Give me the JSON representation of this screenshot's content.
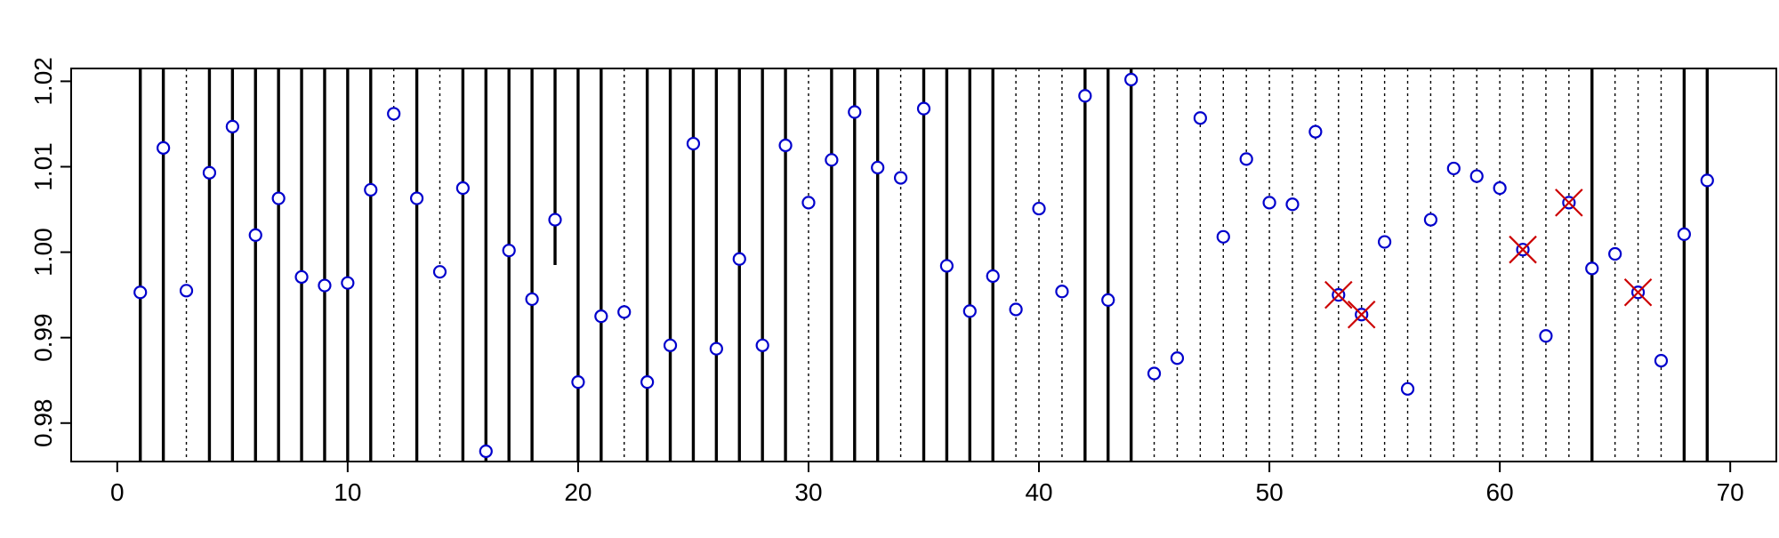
{
  "chart_data": {
    "type": "scatter",
    "title": "",
    "xlabel": "",
    "ylabel": "",
    "xlim": [
      -2,
      72
    ],
    "ylim": [
      0.9755,
      1.0215
    ],
    "grid": false,
    "x_ticks": [
      0,
      10,
      20,
      30,
      40,
      50,
      60,
      70
    ],
    "y_ticks": [
      0.98,
      0.99,
      1.0,
      1.01,
      1.02
    ],
    "x_tick_labels": [
      "0",
      "10",
      "20",
      "30",
      "40",
      "50",
      "60",
      "70"
    ],
    "y_tick_labels": [
      "0.98",
      "0.99",
      "1.00",
      "1.01",
      "1.02"
    ],
    "x": [
      1,
      2,
      3,
      4,
      5,
      6,
      7,
      8,
      9,
      10,
      11,
      12,
      13,
      14,
      15,
      16,
      17,
      18,
      19,
      20,
      21,
      22,
      23,
      24,
      25,
      26,
      27,
      28,
      29,
      30,
      31,
      32,
      33,
      34,
      35,
      36,
      37,
      38,
      39,
      40,
      41,
      42,
      43,
      44,
      45,
      46,
      47,
      48,
      49,
      50,
      51,
      52,
      53,
      54,
      55,
      56,
      57,
      58,
      59,
      60,
      61,
      62,
      63,
      64,
      65,
      66,
      67,
      68,
      69
    ],
    "values": [
      0.9953,
      1.0122,
      0.9955,
      1.0093,
      1.0147,
      1.002,
      1.0063,
      0.9971,
      0.9961,
      0.9964,
      1.0073,
      1.0162,
      1.0063,
      0.9977,
      1.0075,
      0.9767,
      1.0002,
      0.9945,
      1.0038,
      0.9848,
      0.9925,
      0.993,
      0.9848,
      0.9891,
      1.0127,
      0.9887,
      0.9992,
      0.9891,
      1.0125,
      1.0058,
      1.0108,
      1.0164,
      1.0099,
      1.0087,
      1.0168,
      0.9984,
      0.9931,
      0.9972,
      0.9933,
      1.0051,
      0.9954,
      1.0183,
      0.9944,
      1.0202,
      0.9858,
      0.9876,
      1.0157,
      1.0018,
      1.0109,
      1.0058,
      1.0056,
      1.0141,
      0.995,
      0.9927,
      1.0012,
      0.984,
      1.0038,
      1.0098,
      1.0089,
      1.0075,
      1.0003,
      0.9902,
      1.0058,
      0.9981,
      0.9998,
      0.9953,
      0.9873,
      1.0021,
      1.0084
    ],
    "line_styles": [
      "solid",
      "solid",
      "dotted",
      "solid",
      "solid",
      "solid",
      "solid",
      "solid",
      "solid",
      "solid",
      "solid",
      "dotted",
      "solid",
      "dotted",
      "solid",
      "solid",
      "solid",
      "solid",
      "partial",
      "solid",
      "solid",
      "dotted",
      "solid",
      "solid",
      "solid",
      "solid",
      "solid",
      "solid",
      "solid",
      "dotted",
      "solid",
      "solid",
      "solid",
      "dotted",
      "solid",
      "solid",
      "solid",
      "solid",
      "dotted",
      "dotted",
      "dotted",
      "solid",
      "solid",
      "solid",
      "dotted",
      "dotted",
      "dotted",
      "dotted",
      "dotted",
      "dotted",
      "dotted",
      "dotted",
      "dotted",
      "dotted",
      "dotted",
      "dotted",
      "dotted",
      "dotted",
      "dotted",
      "dotted",
      "dotted",
      "dotted",
      "dotted",
      "solid",
      "dotted",
      "dotted",
      "dotted",
      "solid",
      "solid"
    ],
    "flagged_x": [
      53,
      54,
      61,
      63,
      66
    ],
    "colors": {
      "point": "#0000cc",
      "flag": "#cc0000",
      "axis": "#000000",
      "line": "#000000"
    }
  }
}
